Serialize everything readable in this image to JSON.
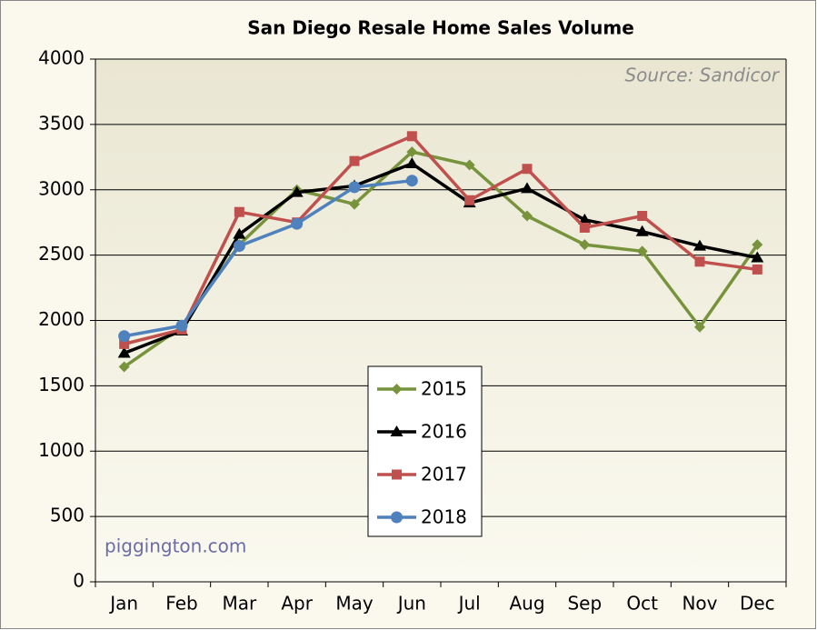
{
  "chart_data": {
    "type": "line",
    "title": "San Diego Resale Home Sales Volume",
    "source": "Source: Sandicor",
    "watermark": "piggington.com",
    "categories": [
      "Jan",
      "Feb",
      "Mar",
      "Apr",
      "May",
      "Jun",
      "Jul",
      "Aug",
      "Sep",
      "Oct",
      "Nov",
      "Dec"
    ],
    "series": [
      {
        "name": "2015",
        "color": "#77933c",
        "marker": "diamond",
        "values": [
          1645,
          1950,
          2580,
          3000,
          2890,
          3290,
          3190,
          2800,
          2580,
          2530,
          1950,
          2580
        ]
      },
      {
        "name": "2016",
        "color": "#000000",
        "marker": "triangle",
        "values": [
          1750,
          1920,
          2660,
          2980,
          3030,
          3200,
          2900,
          3010,
          2770,
          2680,
          2570,
          2480
        ]
      },
      {
        "name": "2017",
        "color": "#c0504d",
        "marker": "square",
        "values": [
          1820,
          1930,
          2830,
          2750,
          3220,
          3410,
          2920,
          3160,
          2710,
          2800,
          2450,
          2390
        ]
      },
      {
        "name": "2018",
        "color": "#4f81bd",
        "marker": "circle",
        "values": [
          1880,
          1960,
          2570,
          2740,
          3020,
          3070,
          null,
          null,
          null,
          null,
          null,
          null
        ]
      }
    ],
    "ylim": [
      0,
      4000
    ],
    "yticks": [
      0,
      500,
      1000,
      1500,
      2000,
      2500,
      3000,
      3500,
      4000
    ],
    "grid": true
  }
}
